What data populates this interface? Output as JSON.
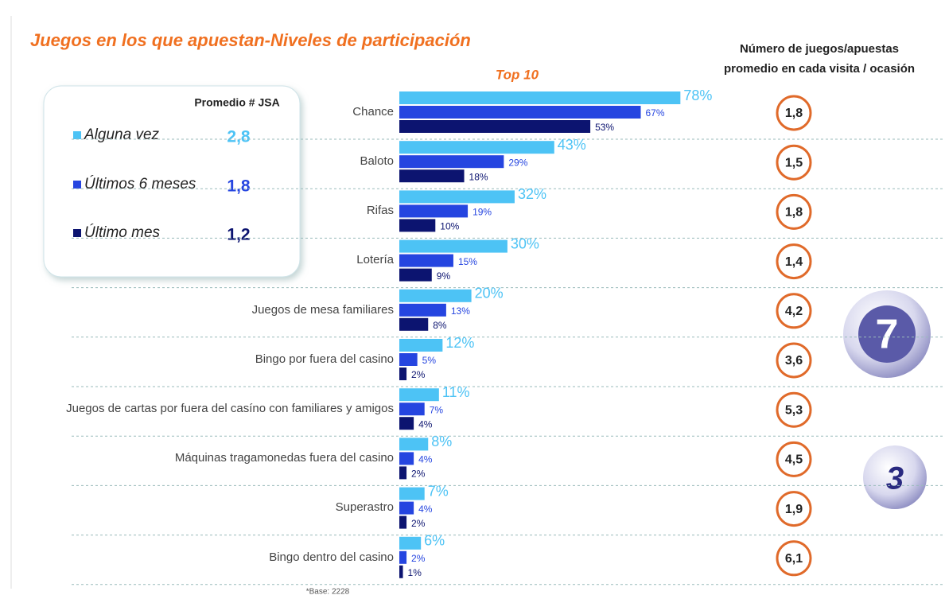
{
  "chart_data": {
    "type": "bar",
    "orientation": "horizontal",
    "title": "Juegos en los que apuestan-Niveles de participación",
    "subtitle": "Top 10",
    "categories": [
      "Chance",
      "Baloto",
      "Rifas",
      "Lotería",
      "Juegos de mesa familiares",
      "Bingo por fuera del casino",
      "Juegos de cartas por fuera del casíno con familiares y amigos",
      "Máquinas tragamonedas fuera del casino",
      "Superastro",
      "Bingo dentro del casino"
    ],
    "legend_title": "Promedio # JSA",
    "series": [
      {
        "name": "Alguna vez",
        "color": "#4dc3f5",
        "values": [
          78,
          43,
          32,
          30,
          20,
          12,
          11,
          8,
          7,
          6
        ],
        "value_labels": [
          "78%",
          "43%",
          "32%",
          "30%",
          "20%",
          "12%",
          "11%",
          "8%",
          "7%",
          "6%"
        ],
        "jsa_average": {
          "value": 2.8,
          "label": "2,8"
        }
      },
      {
        "name": "Últimos 6 meses",
        "color": "#2545e0",
        "values": [
          67,
          29,
          19,
          15,
          13,
          5,
          7,
          4,
          4,
          2
        ],
        "value_labels": [
          "67%",
          "29%",
          "19%",
          "15%",
          "13%",
          "5%",
          "7%",
          "4%",
          "4%",
          "2%"
        ],
        "jsa_average": {
          "value": 1.8,
          "label": "1,8"
        }
      },
      {
        "name": "Último mes",
        "color": "#0c1470",
        "values": [
          53,
          18,
          10,
          9,
          8,
          2,
          4,
          2,
          2,
          1
        ],
        "value_labels": [
          "53%",
          "18%",
          "10%",
          "9%",
          "8%",
          "2%",
          "4%",
          "2%",
          "2%",
          "1%"
        ],
        "jsa_average": {
          "value": 1.2,
          "label": "1,2"
        }
      }
    ],
    "visit_average": {
      "header": [
        "Número de juegos/apuestas",
        "promedio en cada visita / ocasión"
      ],
      "color": "#e06a2a",
      "values": [
        1.8,
        1.5,
        1.8,
        1.4,
        4.2,
        3.6,
        5.3,
        4.5,
        1.9,
        6.1
      ],
      "value_labels": [
        "1,8",
        "1,5",
        "1,8",
        "1,4",
        "4,2",
        "3,6",
        "5,3",
        "4,5",
        "1,9",
        "6,1"
      ]
    },
    "decoration_numbers": [
      "7",
      "3"
    ],
    "footnote": "*Base: 2228"
  }
}
